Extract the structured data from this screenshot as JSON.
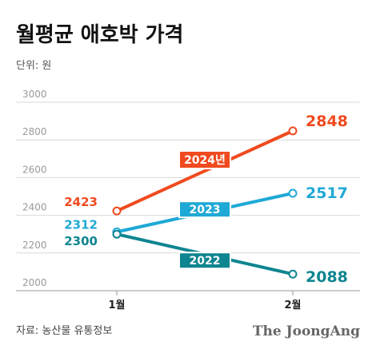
{
  "title": "월평균 애호박 가격",
  "unit": "단위: 원",
  "source": "자료: 농산물 유통정보",
  "brand": "The JoongAng",
  "chart_data": {
    "type": "line",
    "categories": [
      "1월",
      "2월"
    ],
    "ylim": [
      2000,
      3000
    ],
    "yticks": [
      "2000",
      "2200",
      "2400",
      "2600",
      "2800",
      "3000"
    ],
    "grid": true,
    "series": [
      {
        "name": "2024년",
        "values": [
          2423,
          2848
        ],
        "start_label": "2423",
        "end_label": "2848",
        "color": "#f04a1e"
      },
      {
        "name": "2023",
        "values": [
          2312,
          2517
        ],
        "start_label": "2312",
        "end_label": "2517",
        "color": "#1fa9d6"
      },
      {
        "name": "2022",
        "values": [
          2300,
          2088
        ],
        "start_label": "2300",
        "end_label": "2088",
        "color": "#0e8590"
      }
    ]
  }
}
